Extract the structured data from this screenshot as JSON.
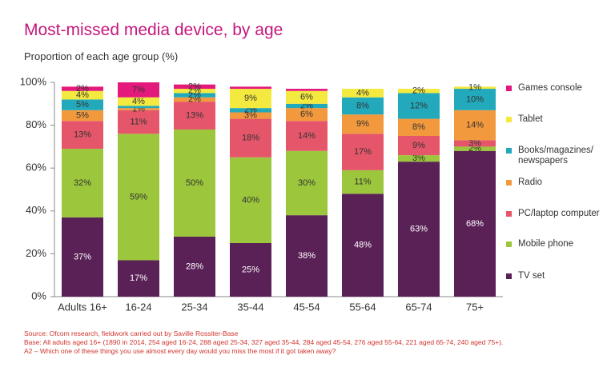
{
  "chart_data": {
    "type": "stacked_bar",
    "title": "Most-missed media device, by age",
    "subtitle": "Proportion of each age group (%)",
    "categories": [
      "Adults 16+",
      "16-24",
      "25-34",
      "35-44",
      "45-54",
      "55-64",
      "65-74",
      "75+"
    ],
    "series": [
      {
        "name": "TV set",
        "color": "#5a2156",
        "values": [
          37,
          17,
          28,
          25,
          38,
          48,
          63,
          68
        ],
        "value_labels": [
          "37%",
          "17%",
          "28%",
          "25%",
          "38%",
          "48%",
          "63%",
          "68%"
        ]
      },
      {
        "name": "Mobile phone",
        "color": "#9cc63b",
        "values": [
          32,
          59,
          50,
          40,
          30,
          11,
          3,
          2
        ],
        "value_labels": [
          "32%",
          "59%",
          "50%",
          "40%",
          "30%",
          "11%",
          "3%",
          "2%"
        ]
      },
      {
        "name": "PC/laptop computer",
        "color": "#e5566b",
        "values": [
          13,
          11,
          13,
          18,
          14,
          17,
          9,
          3
        ],
        "value_labels": [
          "13%",
          "11%",
          "13%",
          "18%",
          "14%",
          "17%",
          "9%",
          "3%"
        ]
      },
      {
        "name": "Radio",
        "color": "#f3993d",
        "values": [
          5,
          1,
          2,
          3,
          6,
          9,
          8,
          14
        ],
        "value_labels": [
          "5%",
          "1%",
          "2%",
          "3%",
          "6%",
          "9%",
          "8%",
          "14%"
        ]
      },
      {
        "name": "Books/magazines/newspapers",
        "color": "#22a9bc",
        "values": [
          5,
          1,
          2,
          2,
          2,
          8,
          12,
          10
        ],
        "value_labels": [
          "5%",
          null,
          "2%",
          "2%",
          "2%",
          "8%",
          "12%",
          "10%"
        ]
      },
      {
        "name": "Tablet",
        "color": "#f4e93e",
        "values": [
          4,
          4,
          2,
          9,
          6,
          4,
          2,
          1
        ],
        "value_labels": [
          "4%",
          "4%",
          "2%",
          "9%",
          "6%",
          "4%",
          "2%",
          "1%"
        ]
      },
      {
        "name": "Games console",
        "color": "#e3197b",
        "values": [
          2,
          7,
          2,
          1,
          1,
          0,
          0,
          0
        ],
        "value_labels": [
          "2%",
          "7%",
          "2%",
          null,
          null,
          null,
          null,
          null
        ]
      }
    ],
    "ylim": [
      0,
      100
    ],
    "yticks": [
      {
        "value": 0,
        "label": "0%"
      },
      {
        "value": 20,
        "label": "20%"
      },
      {
        "value": 40,
        "label": "40%"
      },
      {
        "value": 60,
        "label": "60%"
      },
      {
        "value": 80,
        "label": "80%"
      },
      {
        "value": 100,
        "label": "100%"
      }
    ],
    "notes": [
      "Source: Ofcom research, fieldwork carried out by Saville Rossiter-Base",
      "Base: All adults aged 16+ (1890 in 2014, 254 aged 16-24, 288 aged 25-34, 327 aged 35-44, 284 aged 45-54, 276 aged 55-64, 221 aged 65-74, 240 aged 75+).",
      "A2 – Which one of these things you use almost every day would you miss the most if it got taken away?"
    ]
  }
}
